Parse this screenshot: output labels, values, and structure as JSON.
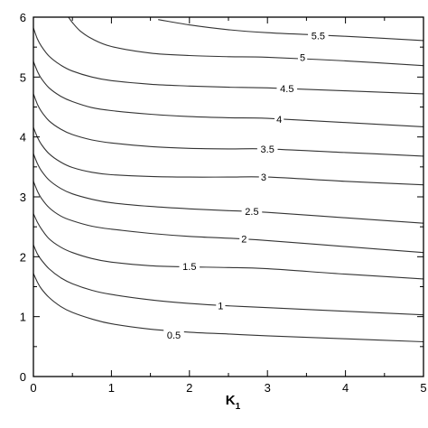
{
  "chart_data": {
    "type": "line",
    "subtype": "contour",
    "title": "",
    "xlabel": "K",
    "xlabel_subscript": "1",
    "ylabel": "",
    "xlim": [
      0,
      5
    ],
    "ylim": [
      0,
      6
    ],
    "x_ticks": [
      "0",
      "1",
      "2",
      "3",
      "4",
      "5"
    ],
    "y_ticks": [
      "0",
      "1",
      "2",
      "3",
      "4",
      "5",
      "6"
    ],
    "grid": false,
    "legend": "none",
    "line_color": "#333333",
    "series": [
      {
        "label": "0.5",
        "label_at": [
          1.8,
          0.69
        ],
        "points": [
          [
            0.0,
            1.72
          ],
          [
            0.05,
            1.58
          ],
          [
            0.1,
            1.47
          ],
          [
            0.2,
            1.32
          ],
          [
            0.35,
            1.17
          ],
          [
            0.5,
            1.07
          ],
          [
            0.75,
            0.96
          ],
          [
            1.0,
            0.88
          ],
          [
            1.5,
            0.79
          ],
          [
            2.0,
            0.74
          ],
          [
            2.5,
            0.71
          ],
          [
            3.0,
            0.68
          ],
          [
            4.0,
            0.63
          ],
          [
            5.0,
            0.58
          ]
        ]
      },
      {
        "label": "1",
        "label_at": [
          2.4,
          1.18
        ],
        "points": [
          [
            0.0,
            2.2
          ],
          [
            0.05,
            2.05
          ],
          [
            0.1,
            1.95
          ],
          [
            0.2,
            1.8
          ],
          [
            0.35,
            1.65
          ],
          [
            0.5,
            1.55
          ],
          [
            0.75,
            1.44
          ],
          [
            1.0,
            1.37
          ],
          [
            1.5,
            1.28
          ],
          [
            2.0,
            1.22
          ],
          [
            2.5,
            1.18
          ],
          [
            3.0,
            1.15
          ],
          [
            4.0,
            1.09
          ],
          [
            5.0,
            1.03
          ]
        ]
      },
      {
        "label": "1.5",
        "label_at": [
          2.0,
          1.84
        ],
        "points": [
          [
            0.0,
            2.72
          ],
          [
            0.05,
            2.58
          ],
          [
            0.1,
            2.47
          ],
          [
            0.2,
            2.3
          ],
          [
            0.35,
            2.16
          ],
          [
            0.5,
            2.07
          ],
          [
            0.75,
            1.97
          ],
          [
            1.0,
            1.91
          ],
          [
            1.5,
            1.85
          ],
          [
            2.0,
            1.83
          ],
          [
            2.5,
            1.82
          ],
          [
            3.0,
            1.8
          ],
          [
            4.0,
            1.71
          ],
          [
            5.0,
            1.63
          ]
        ]
      },
      {
        "label": "2",
        "label_at": [
          2.7,
          2.3
        ],
        "points": [
          [
            0.0,
            3.26
          ],
          [
            0.05,
            3.1
          ],
          [
            0.1,
            2.98
          ],
          [
            0.2,
            2.82
          ],
          [
            0.35,
            2.68
          ],
          [
            0.5,
            2.6
          ],
          [
            0.75,
            2.51
          ],
          [
            1.0,
            2.46
          ],
          [
            1.5,
            2.39
          ],
          [
            2.0,
            2.34
          ],
          [
            2.5,
            2.31
          ],
          [
            3.0,
            2.27
          ],
          [
            4.0,
            2.17
          ],
          [
            5.0,
            2.07
          ]
        ]
      },
      {
        "label": "2.5",
        "label_at": [
          2.8,
          2.76
        ],
        "points": [
          [
            0.0,
            3.72
          ],
          [
            0.05,
            3.56
          ],
          [
            0.1,
            3.44
          ],
          [
            0.2,
            3.28
          ],
          [
            0.35,
            3.14
          ],
          [
            0.5,
            3.05
          ],
          [
            0.75,
            2.96
          ],
          [
            1.0,
            2.9
          ],
          [
            1.5,
            2.84
          ],
          [
            2.0,
            2.8
          ],
          [
            2.5,
            2.77
          ],
          [
            3.0,
            2.74
          ],
          [
            4.0,
            2.65
          ],
          [
            5.0,
            2.56
          ]
        ]
      },
      {
        "label": "3",
        "label_at": [
          2.95,
          3.33
        ],
        "points": [
          [
            0.0,
            4.16
          ],
          [
            0.05,
            4.0
          ],
          [
            0.1,
            3.88
          ],
          [
            0.2,
            3.72
          ],
          [
            0.35,
            3.58
          ],
          [
            0.5,
            3.49
          ],
          [
            0.75,
            3.41
          ],
          [
            1.0,
            3.37
          ],
          [
            1.5,
            3.34
          ],
          [
            2.0,
            3.33
          ],
          [
            2.5,
            3.33
          ],
          [
            3.0,
            3.33
          ],
          [
            4.0,
            3.26
          ],
          [
            5.0,
            3.2
          ]
        ]
      },
      {
        "label": "3.5",
        "label_at": [
          3.0,
          3.8
        ],
        "points": [
          [
            0.0,
            4.72
          ],
          [
            0.05,
            4.55
          ],
          [
            0.1,
            4.43
          ],
          [
            0.2,
            4.27
          ],
          [
            0.35,
            4.13
          ],
          [
            0.5,
            4.04
          ],
          [
            0.75,
            3.95
          ],
          [
            1.0,
            3.9
          ],
          [
            1.5,
            3.84
          ],
          [
            2.0,
            3.81
          ],
          [
            2.5,
            3.8
          ],
          [
            3.0,
            3.8
          ],
          [
            4.0,
            3.74
          ],
          [
            5.0,
            3.68
          ]
        ]
      },
      {
        "label": "4",
        "label_at": [
          3.15,
          4.3
        ],
        "points": [
          [
            0.0,
            5.26
          ],
          [
            0.05,
            5.1
          ],
          [
            0.1,
            4.98
          ],
          [
            0.2,
            4.82
          ],
          [
            0.35,
            4.68
          ],
          [
            0.5,
            4.59
          ],
          [
            0.75,
            4.49
          ],
          [
            1.0,
            4.44
          ],
          [
            1.5,
            4.38
          ],
          [
            2.0,
            4.34
          ],
          [
            2.5,
            4.32
          ],
          [
            3.0,
            4.31
          ],
          [
            4.0,
            4.24
          ],
          [
            5.0,
            4.17
          ]
        ]
      },
      {
        "label": "4.5",
        "label_at": [
          3.25,
          4.81
        ],
        "points": [
          [
            0.0,
            5.82
          ],
          [
            0.05,
            5.64
          ],
          [
            0.1,
            5.52
          ],
          [
            0.2,
            5.35
          ],
          [
            0.35,
            5.2
          ],
          [
            0.5,
            5.1
          ],
          [
            0.75,
            5.0
          ],
          [
            1.0,
            4.94
          ],
          [
            1.5,
            4.88
          ],
          [
            2.0,
            4.85
          ],
          [
            2.5,
            4.83
          ],
          [
            3.0,
            4.82
          ],
          [
            4.0,
            4.77
          ],
          [
            5.0,
            4.72
          ]
        ]
      },
      {
        "label": "5",
        "label_at": [
          3.45,
          5.33
        ],
        "points": [
          [
            0.45,
            6.0
          ],
          [
            0.5,
            5.91
          ],
          [
            0.6,
            5.77
          ],
          [
            0.75,
            5.64
          ],
          [
            1.0,
            5.51
          ],
          [
            1.5,
            5.4
          ],
          [
            2.0,
            5.36
          ],
          [
            2.5,
            5.34
          ],
          [
            3.0,
            5.33
          ],
          [
            4.0,
            5.27
          ],
          [
            5.0,
            5.19
          ]
        ]
      },
      {
        "label": "5.5",
        "label_at": [
          3.65,
          5.69
        ],
        "points": [
          [
            1.6,
            5.96
          ],
          [
            2.0,
            5.87
          ],
          [
            2.5,
            5.79
          ],
          [
            3.0,
            5.74
          ],
          [
            3.5,
            5.71
          ],
          [
            4.0,
            5.68
          ],
          [
            5.0,
            5.61
          ]
        ]
      }
    ]
  }
}
